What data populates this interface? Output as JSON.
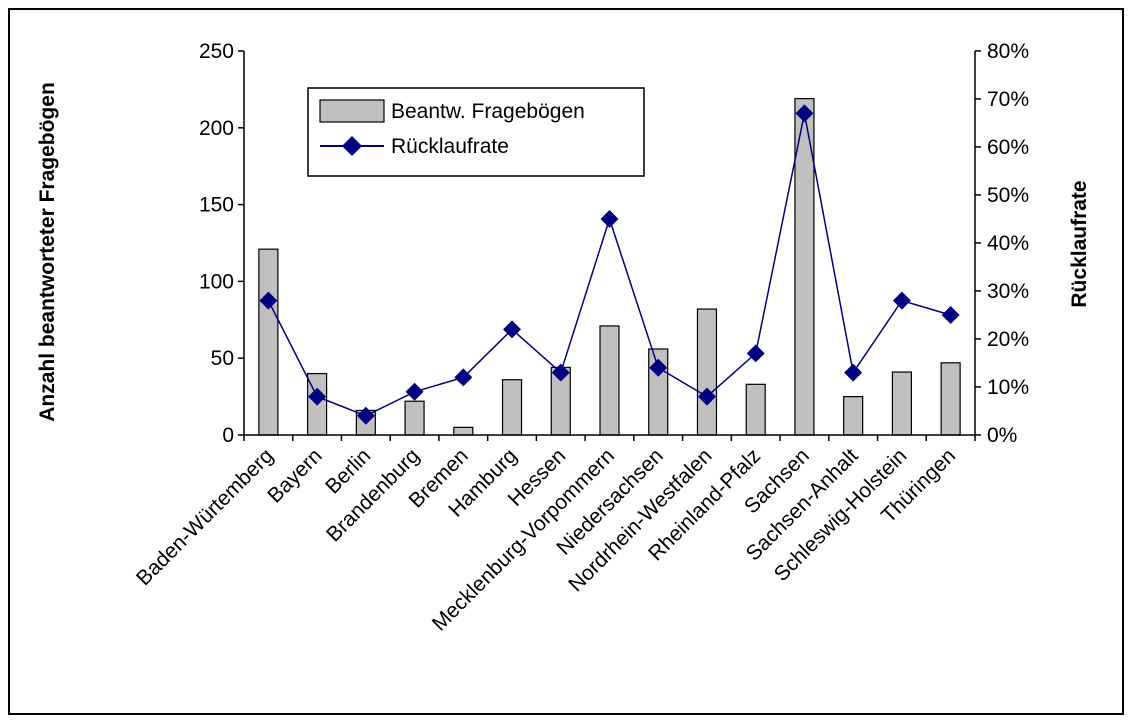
{
  "chart_data": {
    "type": "bar",
    "categories": [
      "Baden-Würtemberg",
      "Bayern",
      "Berlin",
      "Brandenburg",
      "Bremen",
      "Hamburg",
      "Hessen",
      "Mecklenburg-Vorpommern",
      "Niedersachsen",
      "Nordrhein-Westfalen",
      "Rheinland-Pfalz",
      "Sachsen",
      "Sachsen-Anhalt",
      "Schleswig-Holstein",
      "Thüringen"
    ],
    "series": [
      {
        "name": "Beantw. Fragebögen",
        "type": "bar",
        "axis": "left",
        "color": "#c0c0c0",
        "values": [
          121,
          40,
          16,
          22,
          5,
          36,
          44,
          71,
          56,
          82,
          33,
          219,
          25,
          41,
          47
        ]
      },
      {
        "name": "Rücklaufrate",
        "type": "line",
        "axis": "right",
        "color": "#000080",
        "values": [
          0.28,
          0.08,
          0.04,
          0.09,
          0.12,
          0.22,
          0.13,
          0.45,
          0.14,
          0.08,
          0.17,
          0.67,
          0.13,
          0.28,
          0.25
        ]
      }
    ],
    "ylabel": "Anzahl beantworteter Fragebögen",
    "ylabel_right": "Rücklaufrate",
    "ylim": [
      0,
      250
    ],
    "yticks": [
      "0",
      "50",
      "100",
      "150",
      "200",
      "250"
    ],
    "ylim_right": [
      0,
      0.8
    ],
    "yticks_right": [
      "0%",
      "10%",
      "20%",
      "30%",
      "40%",
      "50%",
      "60%",
      "70%",
      "80%"
    ],
    "grid": false,
    "legend_position": "top-left inside plot"
  }
}
